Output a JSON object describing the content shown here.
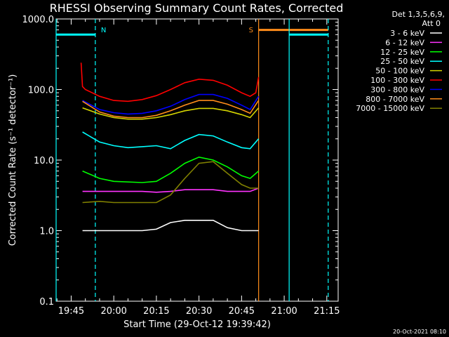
{
  "colors": {
    "background": "#000000",
    "foreground": "#ffffff",
    "attenuator_line": "#00ffff",
    "saa_line": "#ff8c1a"
  },
  "chart_data": {
    "type": "line",
    "title": "RHESSI Observing Summary Count Rates, Corrected",
    "xlabel": "Start Time (29-Oct-12 19:39:42)",
    "ylabel": "Corrected Count Rate (s⁻¹ detector⁻¹)",
    "y_scale": "log",
    "ylim": [
      0.1,
      1000
    ],
    "xlim": [
      "19:39:42",
      "21:19:00"
    ],
    "grid": false,
    "x_ticks": [
      "19:45",
      "20:00",
      "20:15",
      "20:30",
      "20:45",
      "21:00",
      "21:15"
    ],
    "y_ticks": [
      "0.1",
      "1.0",
      "10.0",
      "100.0",
      "1000.0"
    ],
    "footer_date": "20-Oct-2021 08:10",
    "legend_header": [
      "Det 1,3,5,6,9,",
      "Att 0"
    ],
    "legend_position": "right",
    "series": [
      {
        "name": "3 - 6 keV",
        "color": "#ffffff",
        "x": [
          "19:49",
          "19:55",
          "20:00",
          "20:10",
          "20:15",
          "20:20",
          "20:25",
          "20:30",
          "20:35",
          "20:40",
          "20:45",
          "20:48",
          "20:51"
        ],
        "values": [
          1.0,
          1.0,
          1.0,
          1.0,
          1.05,
          1.3,
          1.4,
          1.4,
          1.4,
          1.1,
          1.0,
          1.0,
          1.0
        ]
      },
      {
        "name": "6 - 12 keV",
        "color": "#ff33ff",
        "x": [
          "19:49",
          "19:55",
          "20:00",
          "20:10",
          "20:15",
          "20:20",
          "20:25",
          "20:30",
          "20:35",
          "20:40",
          "20:45",
          "20:48",
          "20:51"
        ],
        "values": [
          3.6,
          3.6,
          3.6,
          3.6,
          3.5,
          3.6,
          3.8,
          3.8,
          3.8,
          3.6,
          3.6,
          3.6,
          4.0
        ]
      },
      {
        "name": "12 - 25 keV",
        "color": "#00ff00",
        "x": [
          "19:49",
          "19:55",
          "20:00",
          "20:10",
          "20:15",
          "20:20",
          "20:25",
          "20:30",
          "20:35",
          "20:40",
          "20:45",
          "20:48",
          "20:51"
        ],
        "values": [
          7.0,
          5.5,
          5.0,
          4.8,
          5.0,
          6.5,
          9.0,
          11.0,
          10.0,
          8.0,
          6.0,
          5.5,
          7.0
        ]
      },
      {
        "name": "25 - 50 keV",
        "color": "#00ffff",
        "x": [
          "19:49",
          "19:55",
          "20:00",
          "20:05",
          "20:10",
          "20:15",
          "20:20",
          "20:25",
          "20:30",
          "20:35",
          "20:40",
          "20:45",
          "20:48",
          "20:51"
        ],
        "values": [
          25,
          18,
          16,
          15,
          15.5,
          16,
          14.5,
          19,
          23,
          22,
          18,
          15,
          14.5,
          20
        ]
      },
      {
        "name": "50 - 100 keV",
        "color": "#d4d400",
        "x": [
          "19:49",
          "19:55",
          "20:00",
          "20:05",
          "20:10",
          "20:15",
          "20:20",
          "20:25",
          "20:30",
          "20:35",
          "20:40",
          "20:45",
          "20:48",
          "20:51"
        ],
        "values": [
          55,
          45,
          40,
          38,
          38,
          40,
          44,
          50,
          54,
          54,
          50,
          44,
          40,
          55
        ]
      },
      {
        "name": "100 - 300 keV",
        "color": "#ff0000",
        "x": [
          "19:48.5",
          "19:49",
          "19:50",
          "19:55",
          "20:00",
          "20:05",
          "20:10",
          "20:15",
          "20:20",
          "20:25",
          "20:30",
          "20:35",
          "20:40",
          "20:45",
          "20:48",
          "20:50",
          "20:51"
        ],
        "values": [
          240,
          110,
          100,
          80,
          70,
          68,
          72,
          82,
          100,
          125,
          140,
          135,
          115,
          90,
          80,
          90,
          150
        ]
      },
      {
        "name": "300 - 800 keV",
        "color": "#0000ff",
        "x": [
          "19:49",
          "19:55",
          "20:00",
          "20:05",
          "20:10",
          "20:15",
          "20:20",
          "20:25",
          "20:30",
          "20:35",
          "20:40",
          "20:45",
          "20:48",
          "20:51"
        ],
        "values": [
          70,
          52,
          47,
          45,
          46,
          50,
          58,
          72,
          85,
          85,
          75,
          60,
          52,
          80
        ]
      },
      {
        "name": "800 - 7000 keV",
        "color": "#ff8c1a",
        "x": [
          "19:49",
          "19:55",
          "20:00",
          "20:05",
          "20:10",
          "20:15",
          "20:20",
          "20:25",
          "20:30",
          "20:35",
          "20:40",
          "20:45",
          "20:48",
          "20:51"
        ],
        "values": [
          68,
          48,
          42,
          40,
          40,
          43,
          50,
          60,
          70,
          70,
          62,
          52,
          46,
          70
        ]
      },
      {
        "name": "7000 - 15000 keV",
        "color": "#808000",
        "x": [
          "19:49",
          "19:55",
          "20:00",
          "20:05",
          "20:10",
          "20:15",
          "20:20",
          "20:25",
          "20:30",
          "20:35",
          "20:40",
          "20:45",
          "20:48",
          "20:51"
        ],
        "values": [
          2.5,
          2.6,
          2.5,
          2.5,
          2.5,
          2.5,
          3.2,
          5.5,
          9.0,
          9.5,
          6.5,
          4.5,
          4.0,
          4.0
        ]
      }
    ],
    "attenuator_markers": [
      {
        "x": "19:39:42",
        "color": "#00ffff",
        "style": "solid"
      },
      {
        "x": "19:53:30",
        "label": "N",
        "color": "#00ffff",
        "style": "dashed"
      },
      {
        "x": "20:51",
        "label": "S",
        "color": "#ff8c1a",
        "style": "solid"
      },
      {
        "x": "21:01:45",
        "color": "#00ffff",
        "style": "solid"
      },
      {
        "x": "21:15:30",
        "color": "#00ffff",
        "style": "dashed"
      }
    ],
    "state_bars": [
      {
        "from": "19:39:42",
        "to": "19:53:30",
        "y": 600,
        "color": "#00ffff"
      },
      {
        "from": "20:51",
        "to": "21:15:30",
        "y": 700,
        "color": "#ff8c1a"
      },
      {
        "from": "21:01:45",
        "to": "21:15:30",
        "y": 600,
        "color": "#00ffff"
      }
    ]
  }
}
